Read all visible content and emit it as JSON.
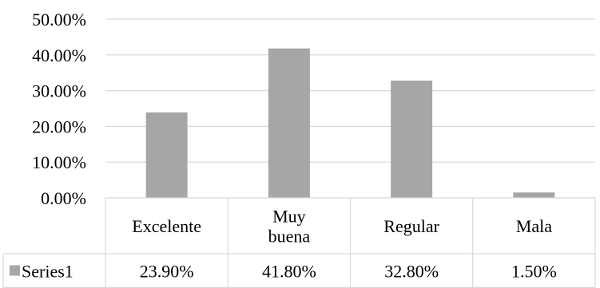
{
  "chart_data": {
    "type": "bar",
    "categories": [
      "Excelente",
      "Muy buena",
      "Regular",
      "Mala"
    ],
    "category_lines": [
      [
        "Excelente"
      ],
      [
        "Muy",
        "buena"
      ],
      [
        "Regular"
      ],
      [
        "Mala"
      ]
    ],
    "series": [
      {
        "name": "Series1",
        "values": [
          23.9,
          41.8,
          32.8,
          1.5
        ],
        "value_labels": [
          "23.90%",
          "41.80%",
          "32.80%",
          "1.50%"
        ],
        "color": "#a6a6a6"
      }
    ],
    "yticks": [
      0,
      10,
      20,
      30,
      40,
      50
    ],
    "ytick_labels": [
      "0.00%",
      "10.00%",
      "20.00%",
      "30.00%",
      "40.00%",
      "50.00%"
    ],
    "ylim": [
      0,
      50
    ],
    "grid": true,
    "data_table": true,
    "title": "",
    "xlabel": "",
    "ylabel": ""
  }
}
